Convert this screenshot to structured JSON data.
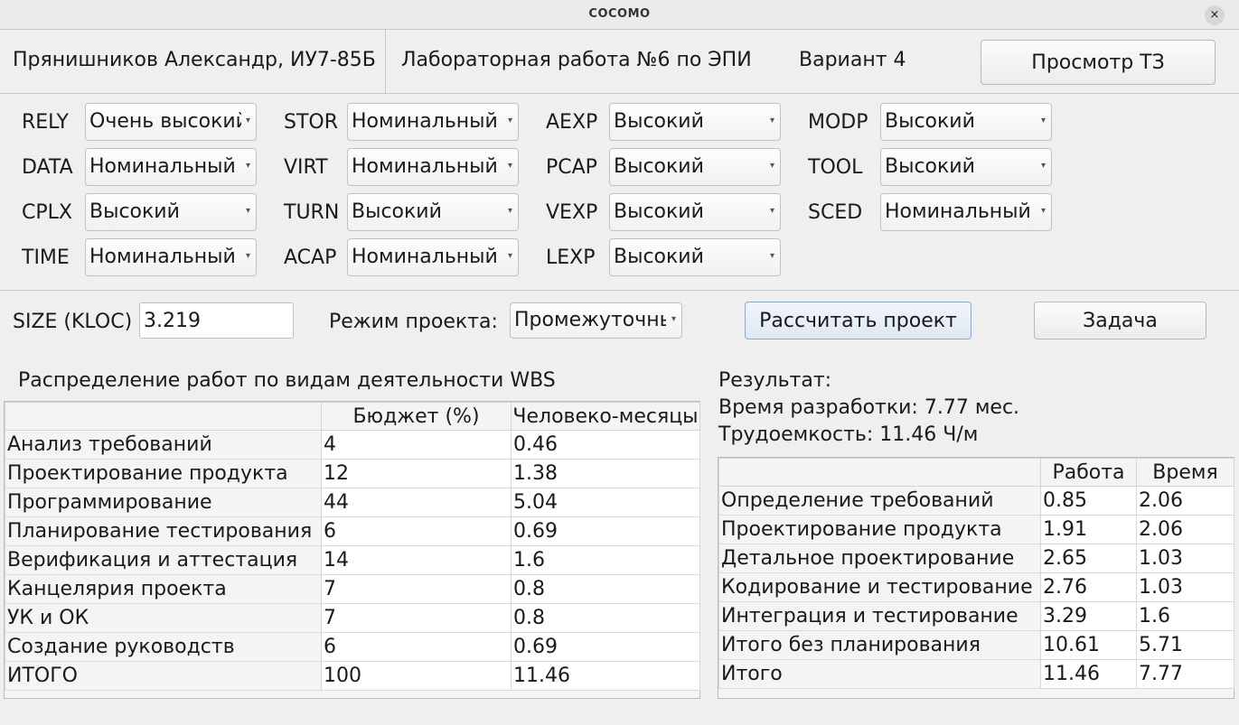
{
  "window": {
    "title": "COCOMO",
    "close_glyph": "×"
  },
  "header": {
    "author": "Прянишников Александр, ИУ7-85Б",
    "lab": "Лабораторная работа №6 по ЭПИ",
    "variant": "Вариант 4",
    "view_tz_button": "Просмотр ТЗ"
  },
  "params": [
    {
      "label": "RELY",
      "value": "Очень высокий"
    },
    {
      "label": "DATA",
      "value": "Номинальный"
    },
    {
      "label": "CPLX",
      "value": "Высокий"
    },
    {
      "label": "TIME",
      "value": "Номинальный"
    },
    {
      "label": "STOR",
      "value": "Номинальный"
    },
    {
      "label": "VIRT",
      "value": "Номинальный"
    },
    {
      "label": "TURN",
      "value": "Высокий"
    },
    {
      "label": "ACAP",
      "value": "Номинальный"
    },
    {
      "label": "AEXP",
      "value": "Высокий"
    },
    {
      "label": "PCAP",
      "value": "Высокий"
    },
    {
      "label": "VEXP",
      "value": "Высокий"
    },
    {
      "label": "LEXP",
      "value": "Высокий"
    },
    {
      "label": "MODP",
      "value": "Высокий"
    },
    {
      "label": "TOOL",
      "value": "Высокий"
    },
    {
      "label": "SCED",
      "value": "Номинальный"
    }
  ],
  "controls": {
    "size_label": "SIZE (KLOC)",
    "size_value": "3.219",
    "mode_label": "Режим проекта:",
    "mode_value": "Промежуточный",
    "calc_button": "Рассчитать проект",
    "task_button": "Задача"
  },
  "wbs": {
    "title": "Распределение работ по видам деятельности WBS",
    "headers": [
      "",
      "Бюджет (%)",
      "Человеко-месяцы"
    ],
    "rows": [
      [
        "Анализ требований",
        "4",
        "0.46"
      ],
      [
        "Проектирование продукта",
        "12",
        "1.38"
      ],
      [
        "Программирование",
        "44",
        "5.04"
      ],
      [
        "Планирование тестирования",
        "6",
        "0.69"
      ],
      [
        "Верификация и аттестация",
        "14",
        "1.6"
      ],
      [
        "Канцелярия проекта",
        "7",
        "0.8"
      ],
      [
        "УК и ОК",
        "7",
        "0.8"
      ],
      [
        "Создание руководств",
        "6",
        "0.69"
      ],
      [
        "ИТОГО",
        "100",
        "11.46"
      ]
    ]
  },
  "result": {
    "title": "Результат:",
    "time_text": "Время разработки: 7.77 мес.",
    "effort_text": "Трудоемкость: 11.46 Ч/м",
    "headers": [
      "",
      "Работа",
      "Время"
    ],
    "rows": [
      [
        "Определение требований",
        "0.85",
        "2.06"
      ],
      [
        "Проектирование продукта",
        "1.91",
        "2.06"
      ],
      [
        "Детальное проектирование",
        "2.65",
        "1.03"
      ],
      [
        "Кодирование и тестирование",
        "2.76",
        "1.03"
      ],
      [
        "Интеграция и тестирование",
        "3.29",
        "1.6"
      ],
      [
        "Итого без планирования",
        "10.61",
        "5.71"
      ],
      [
        "Итого",
        "11.46",
        "7.77"
      ]
    ]
  }
}
